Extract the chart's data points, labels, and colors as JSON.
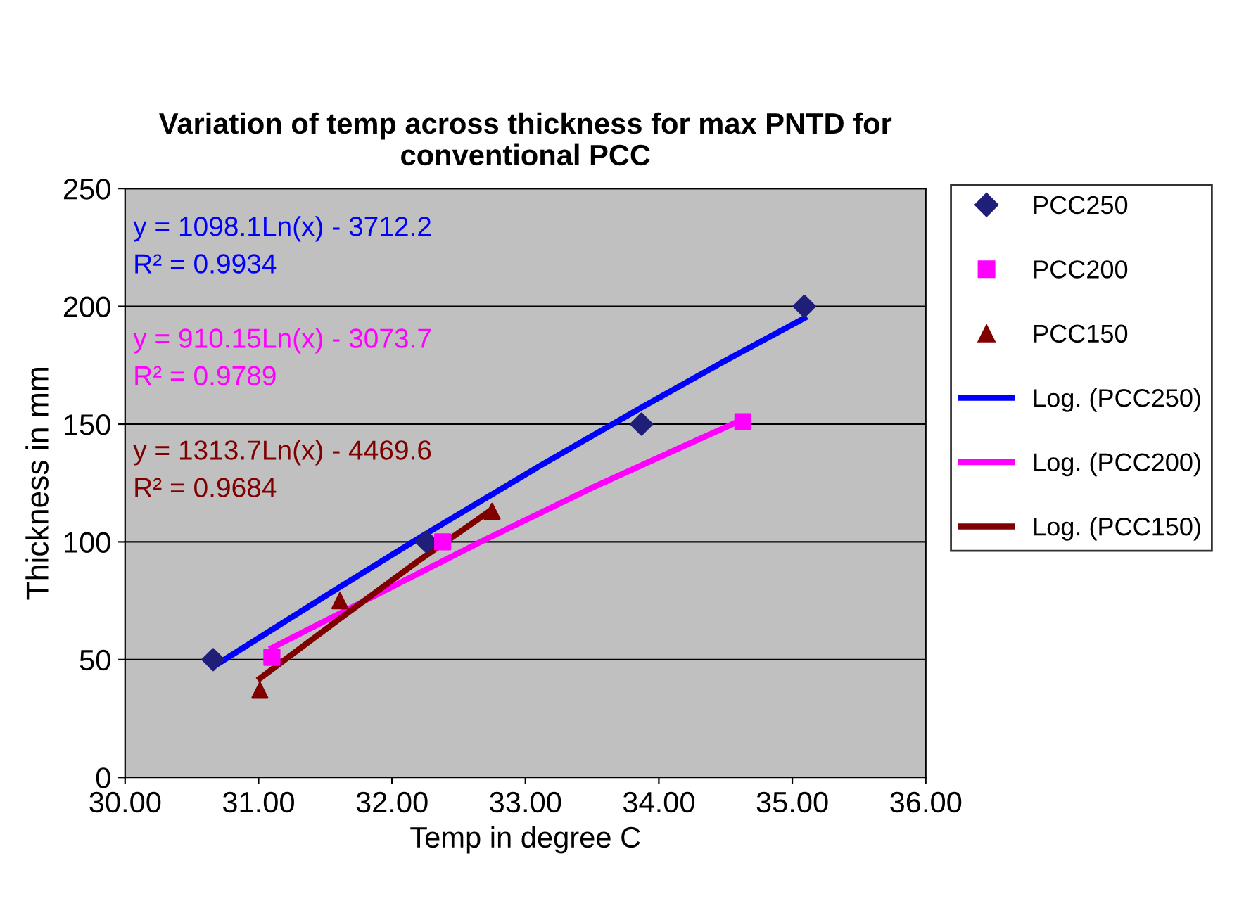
{
  "chart_data": {
    "type": "scatter",
    "title": "Variation of temp across thickness for max PNTD for\nconventional PCC",
    "xlabel": "Temp in degree C",
    "ylabel": "Thickness in mm",
    "xlim": [
      30,
      36
    ],
    "xticks": [
      {
        "value": 30,
        "label": "30.00"
      },
      {
        "value": 31,
        "label": "31.00"
      },
      {
        "value": 32,
        "label": "32.00"
      },
      {
        "value": 33,
        "label": "33.00"
      },
      {
        "value": 34,
        "label": "34.00"
      },
      {
        "value": 35,
        "label": "35.00"
      },
      {
        "value": 36,
        "label": "36.00"
      }
    ],
    "ylim": [
      0,
      250
    ],
    "yticks": [
      0,
      50,
      100,
      150,
      200,
      250
    ],
    "grid": "y",
    "legend": "right",
    "series": [
      {
        "name": "PCC250",
        "color": "#1f1f7a",
        "marker": "diamond",
        "x": [
          30.66,
          32.26,
          33.87,
          35.09
        ],
        "values": [
          50,
          100,
          150,
          200
        ]
      },
      {
        "name": "PCC200",
        "color": "#ff00ff",
        "marker": "square",
        "x": [
          31.1,
          32.38,
          34.63
        ],
        "values": [
          51,
          100,
          151
        ]
      },
      {
        "name": "PCC150",
        "color": "#800000",
        "marker": "triangle",
        "x": [
          31.01,
          31.61,
          32.75
        ],
        "values": [
          37,
          75,
          113
        ]
      },
      {
        "name": "Log. (PCC250)",
        "type": "line",
        "color": "#0000ff",
        "marker": "none",
        "x": [
          30.66,
          31.5,
          32.3,
          33.1,
          33.9,
          34.5,
          35.09
        ],
        "values": [
          47,
          77,
          105,
          132,
          158,
          177,
          195
        ]
      },
      {
        "name": "Log. (PCC200)",
        "type": "line",
        "color": "#ff00ff",
        "marker": "none",
        "x": [
          31.1,
          31.9,
          32.7,
          33.5,
          34.2,
          34.63
        ],
        "values": [
          55,
          78,
          101,
          123,
          141,
          152
        ]
      },
      {
        "name": "Log. (PCC150)",
        "type": "line",
        "color": "#800000",
        "marker": "none",
        "x": [
          31.01,
          31.6,
          32.2,
          32.73
        ],
        "values": [
          42,
          67,
          92,
          113
        ]
      }
    ],
    "annotations": [
      "y = 1098.1Ln(x) - 3712.2\nR² = 0.9934",
      "y = 910.15Ln(x) - 3073.7\nR² = 0.9789",
      "y = 1313.7Ln(x) - 4469.6\nR² = 0.9684"
    ]
  }
}
